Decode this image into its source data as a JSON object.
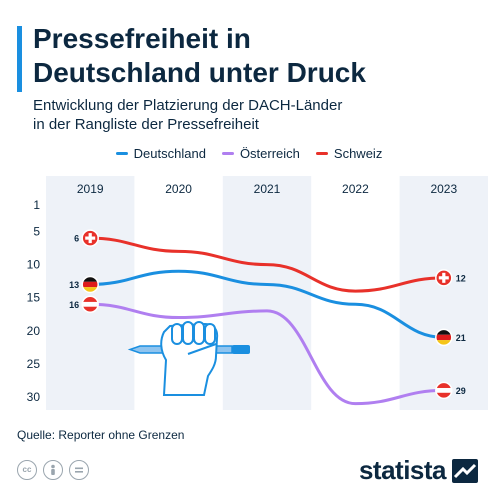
{
  "header": {
    "title_line1": "Pressefreiheit in",
    "title_line2": "Deutschland unter Druck",
    "subtitle_line1": "Entwicklung der Platzierung der DACH-Länder",
    "subtitle_line2": "in der Rangliste der Pressefreiheit"
  },
  "footer": {
    "source": "Quelle: Reporter ohne Grenzen",
    "brand": "statista",
    "license_icons": [
      "cc-icon",
      "attribution-icon",
      "no-derivatives-icon"
    ]
  },
  "colors": {
    "deutschland": "#1a8fe0",
    "oesterreich": "#b07ff0",
    "schweiz": "#e8312a",
    "band": "#eef2f8",
    "text": "#0c2840"
  },
  "chart_data": {
    "type": "line",
    "title": "Pressefreiheit in Deutschland unter Druck",
    "subtitle": "Entwicklung der Platzierung der DACH-Länder in der Rangliste der Pressefreiheit",
    "x": [
      "2019",
      "2020",
      "2021",
      "2022",
      "2023"
    ],
    "y_ticks": [
      1,
      5,
      10,
      15,
      20,
      25,
      30
    ],
    "ylim": [
      1,
      30
    ],
    "y_inverted": true,
    "legend_position": "top",
    "series": [
      {
        "name": "Deutschland",
        "key": "deutschland",
        "values": [
          13,
          11,
          13,
          16,
          21
        ],
        "flag": "germany-flag-icon"
      },
      {
        "name": "Österreich",
        "key": "oesterreich",
        "values": [
          16,
          18,
          17,
          31,
          29
        ],
        "flag": "austria-flag-icon"
      },
      {
        "name": "Schweiz",
        "key": "schweiz",
        "values": [
          6,
          8,
          10,
          14,
          12
        ],
        "flag": "switzerland-flag-icon"
      }
    ],
    "labeled_points": [
      {
        "series": "schweiz",
        "index": 0,
        "label": "6",
        "side": "left"
      },
      {
        "series": "deutschland",
        "index": 0,
        "label": "13",
        "side": "left"
      },
      {
        "series": "oesterreich",
        "index": 0,
        "label": "16",
        "side": "left"
      },
      {
        "series": "schweiz",
        "index": 4,
        "label": "12",
        "side": "right"
      },
      {
        "series": "deutschland",
        "index": 4,
        "label": "21",
        "side": "right"
      },
      {
        "series": "oesterreich",
        "index": 4,
        "label": "29",
        "side": "right"
      }
    ],
    "illustration": "fist-holding-pen-icon"
  }
}
